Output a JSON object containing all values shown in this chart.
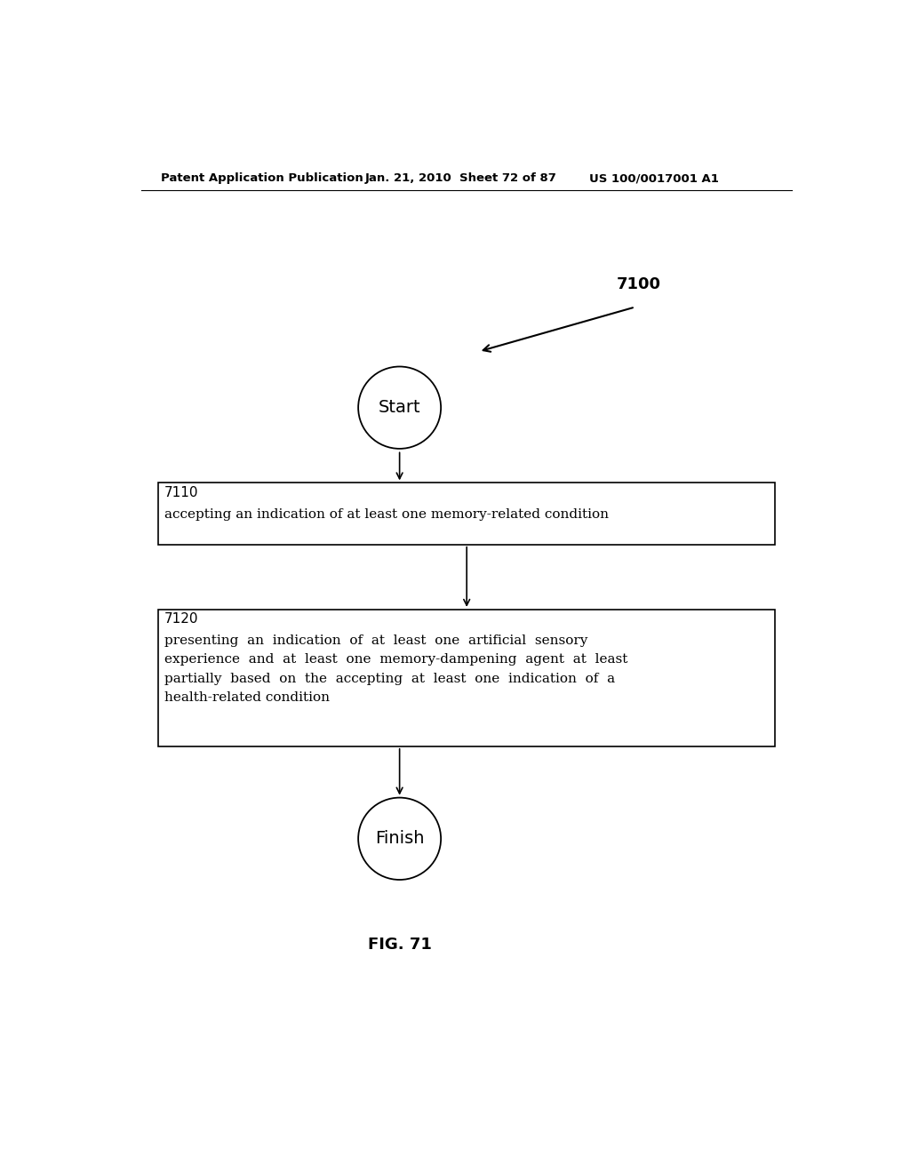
{
  "bg_color": "#ffffff",
  "header_left": "Patent Application Publication",
  "header_mid": "Jan. 21, 2010  Sheet 72 of 87",
  "header_right": "US 100/0017001 A1",
  "fig_label": "7100",
  "start_label": "Start",
  "finish_label": "Finish",
  "box1_label": "7110",
  "box1_text": "accepting an indication of at least one memory-related condition",
  "box2_label": "7120",
  "box2_text_line1": "presenting  an  indication  of  at  least  one  artificial  sensory",
  "box2_text_line2": "experience  and  at  least  one  memory-dampening  agent  at  least",
  "box2_text_line3": "partially  based  on  the  accepting  at  least  one  indication  of  a",
  "box2_text_line4": "health-related condition",
  "fig_caption": "FIG. 71",
  "header_fontsize": 9.5,
  "body_fontsize": 11,
  "label_fontsize": 11
}
